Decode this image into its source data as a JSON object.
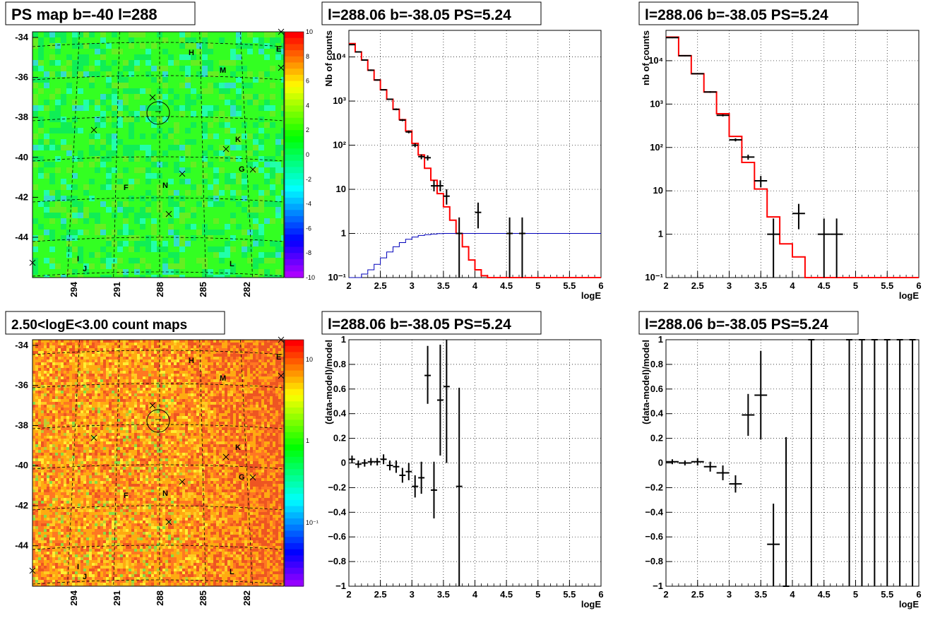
{
  "chart_data": [
    {
      "type": "heatmap",
      "title": "PS map b=-40 l=288",
      "xticks": [
        "294",
        "291",
        "288",
        "285",
        "282"
      ],
      "yticks": [
        "-34",
        "-36",
        "-38",
        "-40",
        "-42",
        "-44"
      ],
      "palette_ticks": [
        "10",
        "8",
        "6",
        "4",
        "2",
        "0",
        "-2",
        "-4",
        "-6",
        "-8",
        "-10"
      ],
      "zlim": [
        -10,
        10
      ],
      "colors": [
        "#33ff22",
        "#10ee55",
        "#66ee22",
        "#22ffaa",
        "#33ddcc"
      ],
      "sources": [
        "E",
        "H",
        "M",
        "K",
        "G",
        "F",
        "N",
        "I",
        "J",
        "L"
      ]
    },
    {
      "type": "line",
      "title": "l=288.06 b=-38.05 PS=5.24",
      "xlabel": "logE",
      "ylabel": "Nb of counts",
      "xlim": [
        2,
        6
      ],
      "ylim": [
        0.1,
        40000
      ],
      "yscale": "log",
      "xticks": [
        "2",
        "2.5",
        "3",
        "3.5",
        "4",
        "4.5",
        "5",
        "5.5",
        "6"
      ],
      "yticks": [
        {
          "v": 0.1,
          "l": "10⁻¹"
        },
        {
          "v": 1,
          "l": "1"
        },
        {
          "v": 10,
          "l": "10"
        },
        {
          "v": 100,
          "l": "10²"
        },
        {
          "v": 1000,
          "l": "10³"
        },
        {
          "v": 10000,
          "l": "10⁴"
        }
      ],
      "series": [
        {
          "kind": "hist",
          "color": "#ff0000",
          "edges": [
            2.0,
            2.1,
            2.2,
            2.3,
            2.4,
            2.5,
            2.6,
            2.7,
            2.8,
            2.9,
            3.0,
            3.1,
            3.2,
            3.3,
            3.4,
            3.5,
            3.6,
            3.7,
            3.8,
            3.9,
            4.0,
            4.1,
            4.2,
            4.3,
            6.0
          ],
          "values": [
            20000,
            13000,
            8500,
            5000,
            3000,
            1800,
            1100,
            650,
            380,
            210,
            110,
            60,
            30,
            16,
            8,
            4,
            2,
            1,
            0.5,
            0.25,
            0.15,
            0.11,
            0.1,
            0.1
          ]
        },
        {
          "kind": "hist",
          "color": "#0000bb",
          "edges": [
            2.0,
            2.1,
            2.2,
            2.3,
            2.4,
            2.5,
            2.6,
            2.7,
            2.8,
            2.9,
            3.0,
            3.1,
            3.2,
            3.3,
            3.4,
            3.5,
            3.6,
            3.7,
            3.8,
            6.0
          ],
          "values": [
            0.08,
            0.1,
            0.12,
            0.15,
            0.2,
            0.28,
            0.38,
            0.5,
            0.62,
            0.74,
            0.83,
            0.9,
            0.94,
            0.97,
            0.99,
            1,
            1,
            1,
            1
          ]
        },
        {
          "kind": "err",
          "color": "#000000",
          "points": [
            {
              "x": 2.05,
              "y": 19000,
              "lo": 18500,
              "hi": 19500,
              "w": 0.05
            },
            {
              "x": 2.15,
              "y": 13000,
              "lo": 12600,
              "hi": 13400,
              "w": 0.05
            },
            {
              "x": 2.25,
              "y": 8500,
              "lo": 8200,
              "hi": 8800,
              "w": 0.05
            },
            {
              "x": 2.35,
              "y": 5000,
              "lo": 4800,
              "hi": 5200,
              "w": 0.05
            },
            {
              "x": 2.45,
              "y": 3000,
              "lo": 2900,
              "hi": 3100,
              "w": 0.05
            },
            {
              "x": 2.55,
              "y": 1800,
              "lo": 1750,
              "hi": 1850,
              "w": 0.05
            },
            {
              "x": 2.65,
              "y": 1100,
              "lo": 1060,
              "hi": 1140,
              "w": 0.05
            },
            {
              "x": 2.75,
              "y": 650,
              "lo": 620,
              "hi": 680,
              "w": 0.05
            },
            {
              "x": 2.85,
              "y": 370,
              "lo": 350,
              "hi": 390,
              "w": 0.05
            },
            {
              "x": 2.95,
              "y": 200,
              "lo": 186,
              "hi": 214,
              "w": 0.05
            },
            {
              "x": 3.05,
              "y": 100,
              "lo": 90,
              "hi": 110,
              "w": 0.05
            },
            {
              "x": 3.15,
              "y": 55,
              "lo": 48,
              "hi": 62,
              "w": 0.05
            },
            {
              "x": 3.25,
              "y": 52,
              "lo": 45,
              "hi": 59,
              "w": 0.05
            },
            {
              "x": 3.35,
              "y": 12,
              "lo": 9,
              "hi": 16,
              "w": 0.05
            },
            {
              "x": 3.45,
              "y": 12,
              "lo": 9,
              "hi": 16,
              "w": 0.05
            },
            {
              "x": 3.55,
              "y": 7,
              "lo": 4.5,
              "hi": 10,
              "w": 0.05
            },
            {
              "x": 3.75,
              "y": 1,
              "lo": 0.1,
              "hi": 2.3,
              "w": 0.05
            },
            {
              "x": 4.05,
              "y": 3,
              "lo": 1.3,
              "hi": 5,
              "w": 0.05
            },
            {
              "x": 4.55,
              "y": 1,
              "lo": 0.1,
              "hi": 2.3,
              "w": 0.05
            },
            {
              "x": 4.75,
              "y": 1,
              "lo": 0.1,
              "hi": 2.3,
              "w": 0.05
            }
          ]
        }
      ]
    },
    {
      "type": "line",
      "title": "l=288.06 b=-38.05 PS=5.24",
      "xlabel": "logE",
      "ylabel": "nb of counts",
      "xlim": [
        2,
        6
      ],
      "ylim": [
        0.1,
        50000
      ],
      "yscale": "log",
      "xticks": [
        "2",
        "2.5",
        "3",
        "3.5",
        "4",
        "4.5",
        "5",
        "5.5",
        "6"
      ],
      "yticks": [
        {
          "v": 0.1,
          "l": "10⁻¹"
        },
        {
          "v": 1,
          "l": "1"
        },
        {
          "v": 10,
          "l": "10"
        },
        {
          "v": 100,
          "l": "10²"
        },
        {
          "v": 1000,
          "l": "10³"
        },
        {
          "v": 10000,
          "l": "10⁴"
        }
      ],
      "series": [
        {
          "kind": "hist",
          "color": "#ff0000",
          "edges": [
            2.0,
            2.2,
            2.4,
            2.6,
            2.8,
            3.0,
            3.2,
            3.4,
            3.6,
            3.8,
            4.0,
            4.2,
            6.0
          ],
          "values": [
            35000,
            13000,
            5000,
            1900,
            600,
            180,
            45,
            11,
            2.5,
            0.6,
            0.3,
            0.1
          ]
        },
        {
          "kind": "err",
          "color": "#000000",
          "points": [
            {
              "x": 2.1,
              "y": 34000,
              "lo": 33000,
              "hi": 35000,
              "w": 0.1
            },
            {
              "x": 2.3,
              "y": 13000,
              "lo": 12600,
              "hi": 13400,
              "w": 0.1
            },
            {
              "x": 2.5,
              "y": 5000,
              "lo": 4850,
              "hi": 5150,
              "w": 0.1
            },
            {
              "x": 2.7,
              "y": 1900,
              "lo": 1820,
              "hi": 1980,
              "w": 0.1
            },
            {
              "x": 2.9,
              "y": 550,
              "lo": 520,
              "hi": 580,
              "w": 0.1
            },
            {
              "x": 3.1,
              "y": 150,
              "lo": 138,
              "hi": 162,
              "w": 0.1
            },
            {
              "x": 3.3,
              "y": 60,
              "lo": 52,
              "hi": 68,
              "w": 0.1
            },
            {
              "x": 3.5,
              "y": 17,
              "lo": 12,
              "hi": 22,
              "w": 0.1
            },
            {
              "x": 3.7,
              "y": 1,
              "lo": 0.1,
              "hi": 2.3,
              "w": 0.1
            },
            {
              "x": 4.1,
              "y": 3,
              "lo": 1.3,
              "hi": 5,
              "w": 0.1
            },
            {
              "x": 4.5,
              "y": 1,
              "lo": 0.1,
              "hi": 2.3,
              "w": 0.1
            },
            {
              "x": 4.7,
              "y": 1,
              "lo": 0.1,
              "hi": 2.3,
              "w": 0.1
            }
          ]
        }
      ]
    },
    {
      "type": "heatmap",
      "title": "2.50<logE<3.00 count maps",
      "xticks": [
        "294",
        "291",
        "288",
        "285",
        "282"
      ],
      "yticks": [
        "-34",
        "-36",
        "-38",
        "-40",
        "-42",
        "-44"
      ],
      "palette_ticks": [
        "10",
        "1",
        "10⁻¹"
      ],
      "colors": [
        "#ffaa11",
        "#ff7722",
        "#ffcc22",
        "#ee5522",
        "#bbcc33",
        "#ffee33",
        "#88dd44"
      ],
      "sources": [
        "E",
        "H",
        "M",
        "K",
        "G",
        "F",
        "N",
        "I",
        "J",
        "L"
      ]
    },
    {
      "type": "scatter",
      "title": "l=288.06 b=-38.05 PS=5.24",
      "xlabel": "logE",
      "ylabel": "(data-model)/model",
      "xlim": [
        2,
        6
      ],
      "ylim": [
        -1,
        1
      ],
      "xticks": [
        "2",
        "2.5",
        "3",
        "3.5",
        "4",
        "4.5",
        "5",
        "5.5",
        "6"
      ],
      "yticks": [
        {
          "v": -1,
          "l": "−1"
        },
        {
          "v": -0.8,
          "l": "−0.8"
        },
        {
          "v": -0.6,
          "l": "−0.6"
        },
        {
          "v": -0.4,
          "l": "−0.4"
        },
        {
          "v": -0.2,
          "l": "−0.2"
        },
        {
          "v": 0,
          "l": "0"
        },
        {
          "v": 0.2,
          "l": "0.2"
        },
        {
          "v": 0.4,
          "l": "0.4"
        },
        {
          "v": 0.6,
          "l": "0.6"
        },
        {
          "v": 0.8,
          "l": "0.8"
        },
        {
          "v": 1,
          "l": "1"
        }
      ],
      "series": [
        {
          "kind": "err",
          "color": "#000000",
          "points": [
            {
              "x": 2.05,
              "y": 0.03,
              "lo": 0.0,
              "hi": 0.06,
              "w": 0.05
            },
            {
              "x": 2.15,
              "y": -0.01,
              "lo": -0.04,
              "hi": 0.02,
              "w": 0.05
            },
            {
              "x": 2.25,
              "y": 0.0,
              "lo": -0.03,
              "hi": 0.03,
              "w": 0.05
            },
            {
              "x": 2.35,
              "y": 0.01,
              "lo": -0.02,
              "hi": 0.04,
              "w": 0.05
            },
            {
              "x": 2.45,
              "y": 0.01,
              "lo": -0.02,
              "hi": 0.04,
              "w": 0.05
            },
            {
              "x": 2.55,
              "y": 0.03,
              "lo": -0.01,
              "hi": 0.07,
              "w": 0.05
            },
            {
              "x": 2.65,
              "y": -0.02,
              "lo": -0.06,
              "hi": 0.02,
              "w": 0.05
            },
            {
              "x": 2.75,
              "y": -0.03,
              "lo": -0.08,
              "hi": 0.02,
              "w": 0.05
            },
            {
              "x": 2.85,
              "y": -0.1,
              "lo": -0.16,
              "hi": -0.04,
              "w": 0.05
            },
            {
              "x": 2.95,
              "y": -0.07,
              "lo": -0.14,
              "hi": 0.0,
              "w": 0.05
            },
            {
              "x": 3.05,
              "y": -0.19,
              "lo": -0.28,
              "hi": -0.1,
              "w": 0.05
            },
            {
              "x": 3.15,
              "y": -0.12,
              "lo": -0.25,
              "hi": 0.01,
              "w": 0.05
            },
            {
              "x": 3.25,
              "y": 0.71,
              "lo": 0.48,
              "hi": 0.95,
              "w": 0.05
            },
            {
              "x": 3.35,
              "y": -0.22,
              "lo": -0.45,
              "hi": 0.01,
              "w": 0.05
            },
            {
              "x": 3.45,
              "y": 0.51,
              "lo": 0.06,
              "hi": 0.96,
              "w": 0.05
            },
            {
              "x": 3.55,
              "y": 0.62,
              "lo": 0.0,
              "hi": 1.0,
              "w": 0.05
            },
            {
              "x": 3.75,
              "y": -0.19,
              "lo": -1.0,
              "hi": 0.61,
              "w": 0.05
            }
          ]
        }
      ]
    },
    {
      "type": "scatter",
      "title": "l=288.06 b=-38.05 PS=5.24",
      "xlabel": "logE",
      "ylabel": "(data-model)/model",
      "xlim": [
        2,
        6
      ],
      "ylim": [
        -1,
        1
      ],
      "xticks": [
        "2",
        "2.5",
        "3",
        "3.5",
        "4",
        "4.5",
        "5",
        "5.5",
        "6"
      ],
      "yticks": [
        {
          "v": -1,
          "l": "−1"
        },
        {
          "v": -0.8,
          "l": "−0.8"
        },
        {
          "v": -0.6,
          "l": "−0.6"
        },
        {
          "v": -0.4,
          "l": "−0.4"
        },
        {
          "v": -0.2,
          "l": "−0.2"
        },
        {
          "v": 0,
          "l": "0"
        },
        {
          "v": 0.2,
          "l": "0.2"
        },
        {
          "v": 0.4,
          "l": "0.4"
        },
        {
          "v": 0.6,
          "l": "0.6"
        },
        {
          "v": 0.8,
          "l": "0.8"
        },
        {
          "v": 1,
          "l": "1"
        }
      ],
      "series": [
        {
          "kind": "err",
          "color": "#000000",
          "points": [
            {
              "x": 2.1,
              "y": 0.01,
              "lo": -0.01,
              "hi": 0.03,
              "w": 0.1
            },
            {
              "x": 2.3,
              "y": 0.0,
              "lo": -0.02,
              "hi": 0.02,
              "w": 0.1
            },
            {
              "x": 2.5,
              "y": 0.01,
              "lo": -0.02,
              "hi": 0.04,
              "w": 0.1
            },
            {
              "x": 2.7,
              "y": -0.03,
              "lo": -0.07,
              "hi": 0.01,
              "w": 0.1
            },
            {
              "x": 2.9,
              "y": -0.08,
              "lo": -0.14,
              "hi": -0.02,
              "w": 0.1
            },
            {
              "x": 3.1,
              "y": -0.17,
              "lo": -0.24,
              "hi": -0.1,
              "w": 0.1
            },
            {
              "x": 3.3,
              "y": 0.39,
              "lo": 0.22,
              "hi": 0.56,
              "w": 0.1
            },
            {
              "x": 3.5,
              "y": 0.55,
              "lo": 0.19,
              "hi": 0.91,
              "w": 0.1
            },
            {
              "x": 3.7,
              "y": -0.66,
              "lo": -1.0,
              "hi": -0.33,
              "w": 0.1
            },
            {
              "x": 3.9,
              "y": -1.0,
              "lo": -1.0,
              "hi": 0.21,
              "w": 0.05
            },
            {
              "x": 4.3,
              "y": 1.0,
              "lo": -1.0,
              "hi": 1.0,
              "w": 0.05
            },
            {
              "x": 4.9,
              "y": 1.0,
              "lo": -1.0,
              "hi": 1.0,
              "w": 0.05
            },
            {
              "x": 5.1,
              "y": 1.0,
              "lo": -1.0,
              "hi": 1.0,
              "w": 0.05
            },
            {
              "x": 5.3,
              "y": 1.0,
              "lo": -1.0,
              "hi": 1.0,
              "w": 0.05
            },
            {
              "x": 5.5,
              "y": 1.0,
              "lo": -1.0,
              "hi": 1.0,
              "w": 0.05
            },
            {
              "x": 5.7,
              "y": 1.0,
              "lo": -1.0,
              "hi": 1.0,
              "w": 0.05
            },
            {
              "x": 5.9,
              "y": 1.0,
              "lo": -1.0,
              "hi": 1.0,
              "w": 0.05
            }
          ]
        }
      ]
    }
  ]
}
